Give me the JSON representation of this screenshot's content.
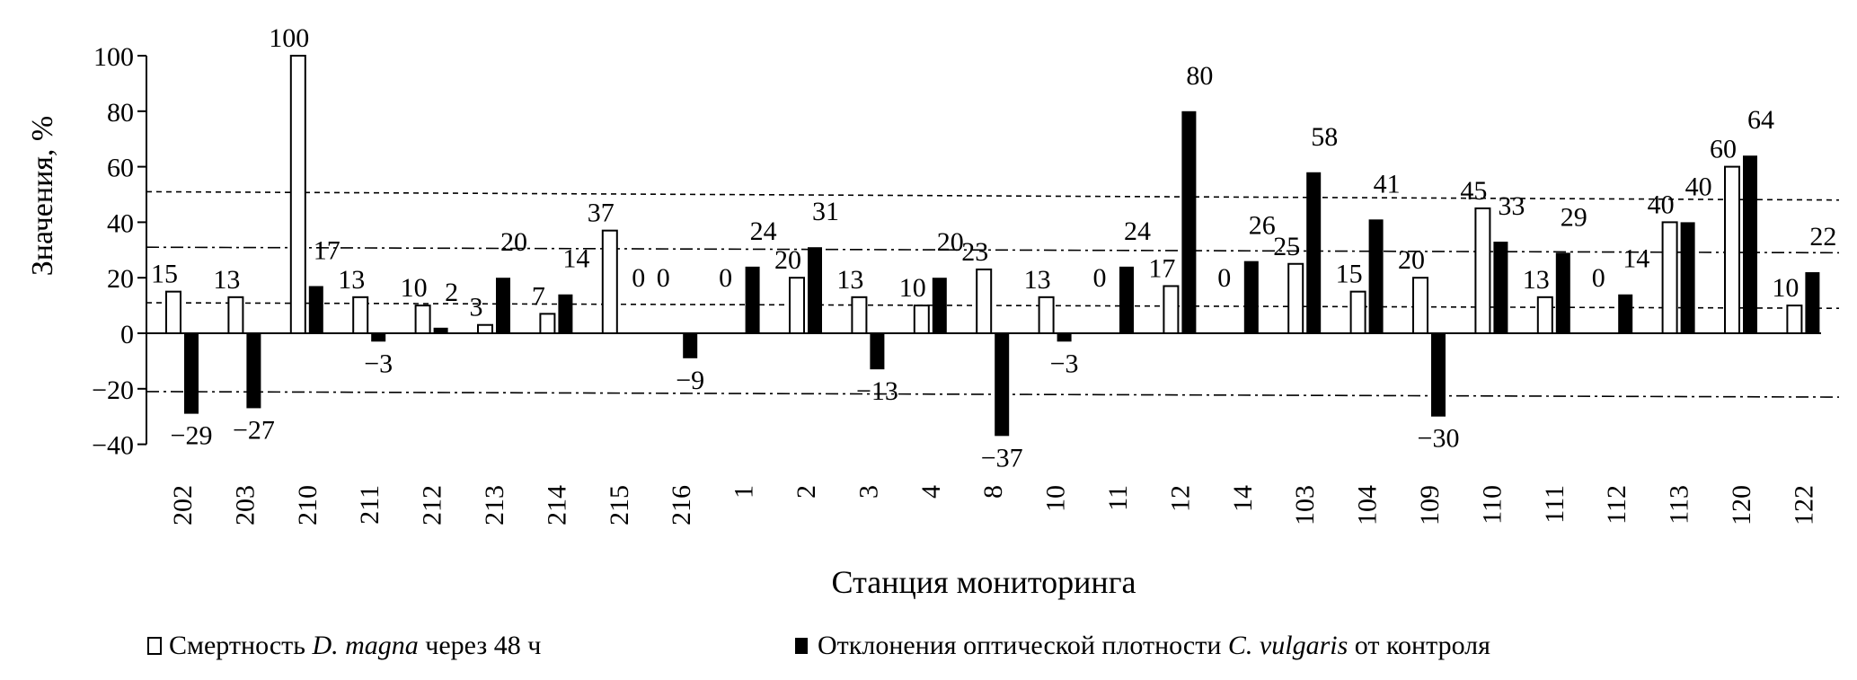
{
  "chart_data": {
    "type": "bar",
    "title": "",
    "xlabel": "Станция мониторинга",
    "ylabel": "Значения, %",
    "ylim": [
      -40,
      100
    ],
    "yticks": [
      "100",
      "80",
      "60",
      "40",
      "20",
      "0",
      "−20",
      "−40"
    ],
    "ytick_values": [
      100,
      80,
      60,
      40,
      20,
      0,
      -20,
      -40
    ],
    "categories": [
      "202",
      "203",
      "210",
      "211",
      "212",
      "213",
      "214",
      "215",
      "216",
      "1",
      "2",
      "3",
      "4",
      "8",
      "10",
      "11",
      "12",
      "14",
      "103",
      "104",
      "109",
      "110",
      "111",
      "112",
      "113",
      "120",
      "122"
    ],
    "series": [
      {
        "name": "Смертность D. magna через 48 ч",
        "style": "hollow",
        "values": [
          15,
          13,
          100,
          13,
          10,
          3,
          7,
          37,
          0,
          0,
          20,
          13,
          10,
          23,
          13,
          0,
          17,
          0,
          25,
          15,
          20,
          45,
          13,
          0,
          40,
          60,
          10
        ]
      },
      {
        "name": "Отклонения оптической плотности C. vulgaris от контроля",
        "style": "filled",
        "values": [
          -29,
          -27,
          17,
          -3,
          2,
          20,
          14,
          0,
          -9,
          24,
          31,
          -13,
          20,
          -37,
          -3,
          24,
          80,
          26,
          58,
          41,
          -30,
          33,
          29,
          14,
          40,
          64,
          22
        ]
      }
    ],
    "reference_lines": [
      {
        "style": "dashed",
        "from": 51,
        "to": 48
      },
      {
        "style": "dashdot",
        "from": 31,
        "to": 29
      },
      {
        "style": "dashed",
        "from": 11,
        "to": 9
      },
      {
        "style": "dashdot",
        "from": -21,
        "to": -23
      }
    ],
    "legend": {
      "placement": "bottom",
      "items": [
        {
          "prefix": "Смертность ",
          "italic": "D. magna",
          "suffix": " через 48 ч"
        },
        {
          "prefix": "Отклонения оптической плотности ",
          "italic": "C. vulgaris",
          "suffix": " от контроля"
        }
      ]
    },
    "grid": false
  }
}
